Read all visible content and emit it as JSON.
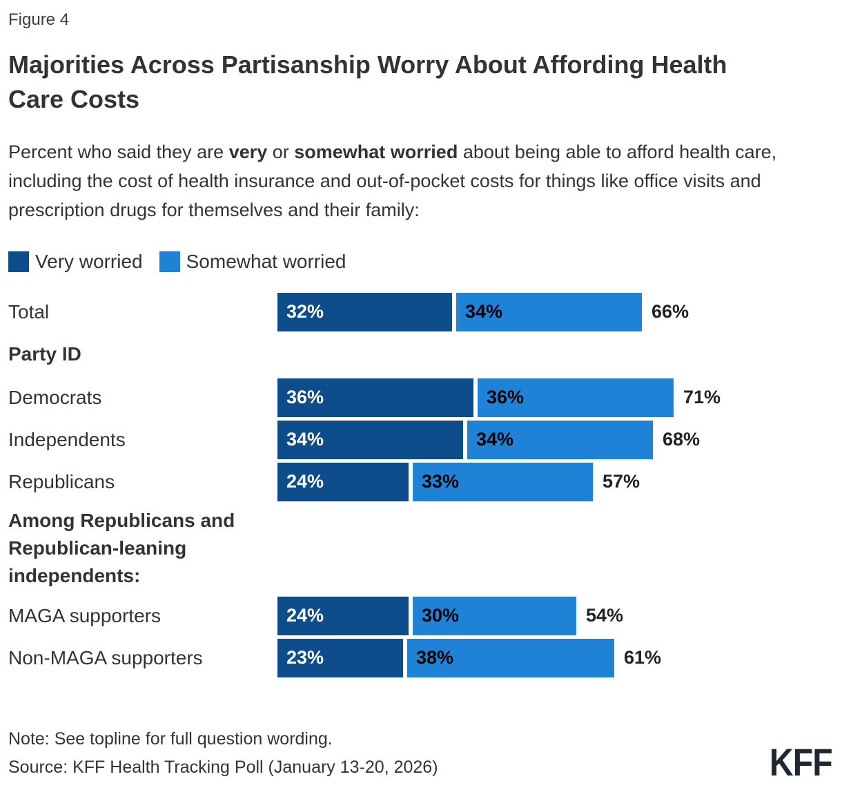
{
  "figure_label": "Figure 4",
  "title_lines": [
    "Majorities Across Partisanship Worry About Affording Health",
    "Care Costs"
  ],
  "subtitle": {
    "seg1": "Percent who said they are ",
    "seg2_bold": "very",
    "seg3": " or ",
    "seg4_bold": "somewhat worried",
    "seg5": " about being able to afford health care, including the cost of health insurance and out-of-pocket costs for things like office visits and prescription drugs for themselves and their family:"
  },
  "chart_data": {
    "type": "bar",
    "orientation": "horizontal",
    "stacked": true,
    "unit": "%",
    "xlim": [
      0,
      100
    ],
    "grid": false,
    "legend_position": "top-left",
    "series": [
      {
        "name": "Very worried",
        "color": "#0d4d8c",
        "values": [
          32,
          36,
          34,
          24,
          24,
          23
        ]
      },
      {
        "name": "Somewhat worried",
        "color": "#1e83d6",
        "values": [
          34,
          36,
          34,
          33,
          30,
          38
        ]
      }
    ],
    "categories": [
      "Total",
      "Democrats",
      "Independents",
      "Republicans",
      "MAGA supporters",
      "Non-MAGA supporters"
    ],
    "totals": [
      66,
      71,
      68,
      57,
      54,
      61
    ],
    "value_label_format": "{v}%",
    "row_order": [
      {
        "kind": "bar",
        "index": 0
      },
      {
        "kind": "header",
        "text": "Party ID"
      },
      {
        "kind": "bar",
        "index": 1
      },
      {
        "kind": "bar",
        "index": 2
      },
      {
        "kind": "bar",
        "index": 3
      },
      {
        "kind": "header",
        "text": "Among Republicans and Republican-leaning independents:",
        "multiline": true
      },
      {
        "kind": "bar",
        "index": 4
      },
      {
        "kind": "bar",
        "index": 5
      }
    ]
  },
  "note": "Note: See topline for full question wording.",
  "source": "Source: KFF Health Tracking Poll (January 13-20, 2026)",
  "logo_text": "KFF"
}
